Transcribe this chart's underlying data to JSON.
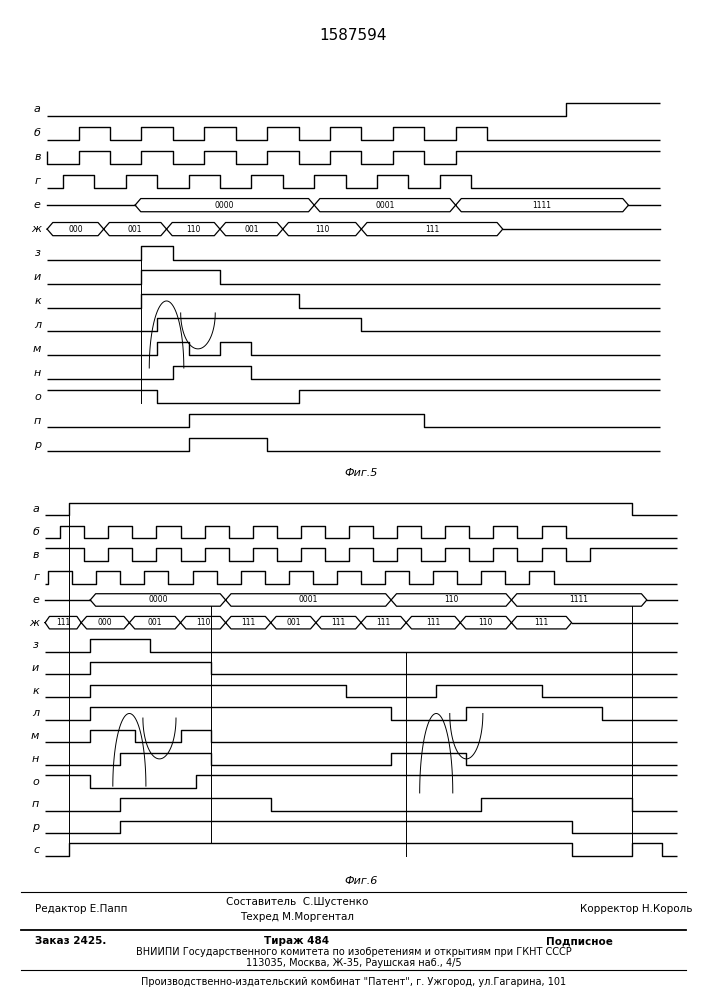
{
  "title": "1587594",
  "fig5_label": "Фиг.5",
  "fig6_label": "Фиг.6",
  "background": "#ffffff",
  "line_color": "#000000",
  "signal_labels_fig5": [
    "а",
    "б",
    "в",
    "г",
    "е",
    "ж",
    "з",
    "и",
    "к",
    "л",
    "м",
    "н",
    "о",
    "п",
    "р"
  ],
  "signal_labels_fig6": [
    "а",
    "б",
    "в",
    "г",
    "е",
    "ж",
    "з",
    "и",
    "к",
    "л",
    "м",
    "н",
    "о",
    "п",
    "р",
    "с"
  ],
  "footer_line1_left": "Редактор Е.Папп",
  "footer_line1_center1": "Составитель  С.Шустенко",
  "footer_line1_center2": "Техред М.Моргентал",
  "footer_line1_right": "Корректор Н.Король",
  "footer_line2a": "Заказ 2425.",
  "footer_line2b": "Тираж 484",
  "footer_line2c": "Подписное",
  "footer_line3": "ВНИИПИ Государственного комитета по изобретениям и открытиям при ГКНТ СССР",
  "footer_line4": "113035, Москва, Ж-35, Раушская наб., 4/5",
  "footer_line5": "Производственно-издательский комбинат \"Патент\", г. Ужгород, ул.Гагарина, 101"
}
